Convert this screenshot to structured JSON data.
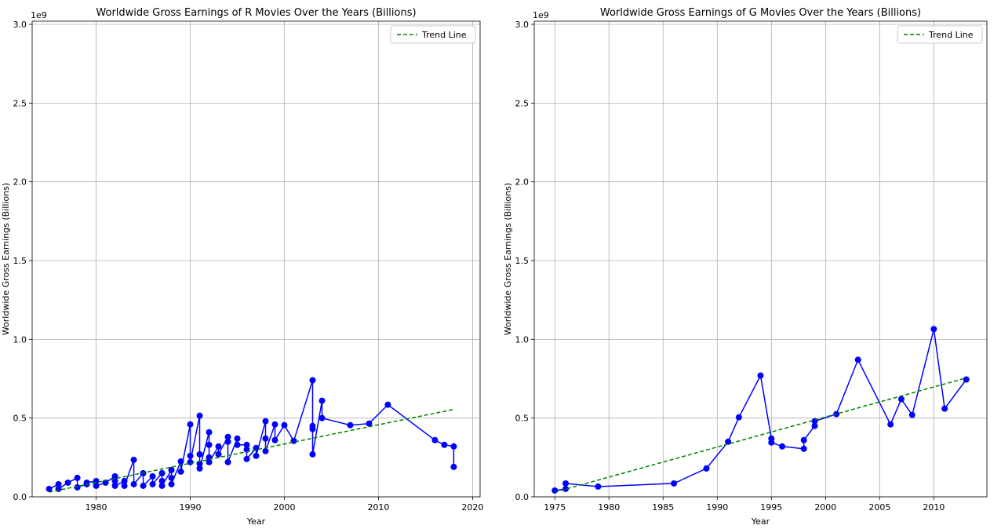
{
  "chart_data": [
    {
      "type": "line",
      "title": "Worldwide Gross Earnings of R Movies Over the Years (Billions)",
      "xlabel": "Year",
      "ylabel": "Worldwide Gross Earnings (Billions)",
      "offset_text": "1e9",
      "xlim": [
        1973.2,
        2020.8
      ],
      "ylim": [
        0,
        3.02
      ],
      "x_ticks": [
        1980,
        1990,
        2000,
        2010,
        2020
      ],
      "y_ticks": [
        0.0,
        0.5,
        1.0,
        1.5,
        2.0,
        2.5,
        3.0
      ],
      "grid": true,
      "legend": {
        "position": "top-right",
        "entries": [
          "Trend Line"
        ]
      },
      "colors": {
        "data": "#0000ff",
        "trend": "#008000"
      },
      "series": [
        {
          "style": "line-marker",
          "x": [
            1975,
            1976,
            1976,
            1977,
            1978,
            1978,
            1979,
            1979,
            1980,
            1980,
            1981,
            1982,
            1982,
            1982,
            1983,
            1983,
            1984,
            1984,
            1985,
            1985,
            1986,
            1986,
            1987,
            1987,
            1987,
            1988,
            1988,
            1988,
            1989,
            1989,
            1990,
            1990,
            1990,
            1991,
            1991,
            1991,
            1991,
            1992,
            1992,
            1992,
            1992,
            1993,
            1993,
            1994,
            1994,
            1994,
            1995,
            1995,
            1996,
            1996,
            1996,
            1997,
            1997,
            1998,
            1998,
            1998,
            1999,
            1999,
            2000,
            2001,
            2003,
            2003,
            2003,
            2003,
            2004,
            2004,
            2007,
            2009,
            2011,
            2016,
            2017,
            2018,
            2018
          ],
          "y": [
            0.05,
            0.08,
            0.05,
            0.09,
            0.12,
            0.06,
            0.08,
            0.09,
            0.1,
            0.07,
            0.09,
            0.13,
            0.1,
            0.07,
            0.1,
            0.07,
            0.235,
            0.08,
            0.15,
            0.07,
            0.13,
            0.08,
            0.15,
            0.1,
            0.07,
            0.17,
            0.12,
            0.08,
            0.225,
            0.16,
            0.46,
            0.26,
            0.22,
            0.515,
            0.27,
            0.21,
            0.18,
            0.41,
            0.33,
            0.25,
            0.22,
            0.32,
            0.27,
            0.38,
            0.35,
            0.22,
            0.37,
            0.33,
            0.33,
            0.3,
            0.24,
            0.31,
            0.26,
            0.48,
            0.37,
            0.29,
            0.46,
            0.36,
            0.455,
            0.355,
            0.74,
            0.45,
            0.43,
            0.27,
            0.61,
            0.5,
            0.455,
            0.465,
            0.585,
            0.36,
            0.33,
            0.32,
            0.19
          ]
        },
        {
          "name": "Trend Line",
          "style": "dashed",
          "x": [
            1975,
            2018
          ],
          "y": [
            0.03,
            0.555
          ]
        }
      ]
    },
    {
      "type": "line",
      "title": "Worldwide Gross Earnings of G Movies Over the Years (Billions)",
      "xlabel": "Year",
      "ylabel": "Worldwide Gross Earnings (Billions)",
      "offset_text": "1e9",
      "xlim": [
        1973.1,
        2014.9
      ],
      "ylim": [
        0,
        3.02
      ],
      "x_ticks": [
        1975,
        1980,
        1985,
        1990,
        1995,
        2000,
        2005,
        2010
      ],
      "y_ticks": [
        0.0,
        0.5,
        1.0,
        1.5,
        2.0,
        2.5,
        3.0
      ],
      "grid": true,
      "legend": {
        "position": "top-right",
        "entries": [
          "Trend Line"
        ]
      },
      "colors": {
        "data": "#0000ff",
        "trend": "#008000"
      },
      "series": [
        {
          "style": "line-marker",
          "x": [
            1975,
            1976,
            1976,
            1979,
            1986,
            1989,
            1991,
            1992,
            1994,
            1995,
            1995,
            1996,
            1998,
            1998,
            1999,
            1999,
            2001,
            2003,
            2006,
            2007,
            2008,
            2010,
            2011,
            2013
          ],
          "y": [
            0.04,
            0.05,
            0.085,
            0.065,
            0.085,
            0.18,
            0.35,
            0.505,
            0.77,
            0.37,
            0.345,
            0.32,
            0.305,
            0.36,
            0.45,
            0.48,
            0.525,
            0.87,
            0.46,
            0.62,
            0.52,
            1.065,
            0.56,
            0.745
          ]
        },
        {
          "name": "Trend Line",
          "style": "dashed",
          "x": [
            1975,
            2013
          ],
          "y": [
            0.03,
            0.755
          ]
        }
      ]
    }
  ]
}
